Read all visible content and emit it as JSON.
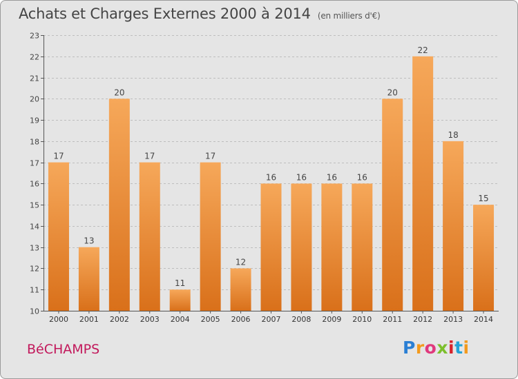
{
  "header": {
    "title": "Achats et Charges Externes 2000 à 2014",
    "unit": "(en milliers d'€)"
  },
  "footer": {
    "commune": "BéCHAMPS",
    "logo_text": "Proxiti"
  },
  "colors": {
    "background": "#e5e5e5",
    "bar_light": "#f6a85a",
    "bar_dark": "#d9701a",
    "commune_text": "#c2185b"
  },
  "chart_data": {
    "type": "bar",
    "title": "Achats et Charges Externes 2000 à 2014",
    "subtitle": "(en milliers d'€)",
    "xlabel": "",
    "ylabel": "",
    "categories": [
      "2000",
      "2001",
      "2002",
      "2003",
      "2004",
      "2005",
      "2006",
      "2007",
      "2008",
      "2009",
      "2010",
      "2011",
      "2012",
      "2013",
      "2014"
    ],
    "values": [
      17,
      13,
      20,
      17,
      11,
      17,
      12,
      16,
      16,
      16,
      16,
      20,
      22,
      18,
      15
    ],
    "ylim": [
      10,
      23
    ],
    "yticks": [
      10,
      11,
      12,
      13,
      14,
      15,
      16,
      17,
      18,
      19,
      20,
      21,
      22,
      23
    ],
    "grid": true,
    "data_labels": true
  }
}
